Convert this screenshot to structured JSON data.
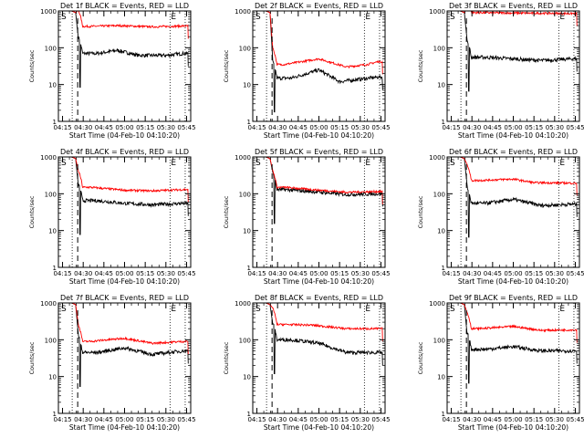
{
  "chart_data": {
    "type": "line",
    "x_axis": {
      "label": "Start Time (04-Feb-10 04:10:20)",
      "tick_labels": [
        "04:15",
        "04:30",
        "04:45",
        "05:00",
        "05:15",
        "05:30",
        "05:45"
      ],
      "tick_minutes": [
        15,
        30,
        45,
        60,
        75,
        90,
        105
      ],
      "xlim_minutes": [
        12,
        108
      ]
    },
    "y_axis": {
      "label": "Counts/sec",
      "scale": "log",
      "ylim": [
        1,
        1000
      ],
      "tick_labels": [
        "1",
        "10",
        "100",
        "1000"
      ]
    },
    "markers": {
      "start_label": "S",
      "end_label": "E",
      "dashed_line_minute": 26,
      "dotted_line_minutes": [
        22,
        93,
        104
      ]
    },
    "colors": {
      "events": "#000000",
      "lld": "#ff0000"
    },
    "panels": [
      {
        "title": "Det 1f BLACK = Events, RED = LLD",
        "series": [
          {
            "name": "BLACK = Events",
            "color": "#000000",
            "plateau": 70,
            "features": [
              [
                40,
                70
              ],
              [
                55,
                85
              ],
              [
                70,
                62
              ],
              [
                90,
                62
              ],
              [
                103,
                70
              ]
            ]
          },
          {
            "name": "RED = LLD",
            "color": "#ff0000",
            "plateau": 380,
            "features": [
              [
                35,
                380
              ],
              [
                55,
                400
              ],
              [
                80,
                370
              ],
              [
                103,
                390
              ]
            ]
          }
        ]
      },
      {
        "title": "Det 2f BLACK = Events, RED = LLD",
        "series": [
          {
            "name": "BLACK = Events",
            "color": "#000000",
            "plateau": 15,
            "features": [
              [
                40,
                15
              ],
              [
                60,
                25
              ],
              [
                75,
                12
              ],
              [
                90,
                14
              ],
              [
                103,
                16
              ]
            ]
          },
          {
            "name": "RED = LLD",
            "color": "#ff0000",
            "plateau": 40,
            "features": [
              [
                35,
                35
              ],
              [
                60,
                50
              ],
              [
                80,
                30
              ],
              [
                95,
                35
              ],
              [
                103,
                42
              ]
            ]
          }
        ]
      },
      {
        "title": "Det 3f BLACK = Events, RED = LLD",
        "series": [
          {
            "name": "BLACK = Events",
            "color": "#000000",
            "plateau": 55,
            "features": [
              [
                40,
                55
              ],
              [
                60,
                50
              ],
              [
                80,
                45
              ],
              [
                103,
                50
              ]
            ]
          },
          {
            "name": "RED = LLD",
            "color": "#ff0000",
            "plateau": 900,
            "features": [
              [
                35,
                900
              ],
              [
                70,
                870
              ],
              [
                103,
                850
              ]
            ]
          }
        ]
      },
      {
        "title": "Det 4f BLACK = Events, RED = LLD",
        "series": [
          {
            "name": "BLACK = Events",
            "color": "#000000",
            "plateau": 60,
            "features": [
              [
                40,
                65
              ],
              [
                60,
                55
              ],
              [
                80,
                50
              ],
              [
                103,
                55
              ]
            ]
          },
          {
            "name": "RED = LLD",
            "color": "#ff0000",
            "plateau": 140,
            "features": [
              [
                35,
                150
              ],
              [
                60,
                125
              ],
              [
                80,
                120
              ],
              [
                103,
                130
              ]
            ]
          }
        ]
      },
      {
        "title": "Det 5f BLACK = Events, RED = LLD",
        "series": [
          {
            "name": "BLACK = Events",
            "color": "#000000",
            "plateau": 120,
            "features": [
              [
                35,
                130
              ],
              [
                55,
                115
              ],
              [
                80,
                95
              ],
              [
                103,
                100
              ]
            ]
          },
          {
            "name": "RED = LLD",
            "color": "#ff0000",
            "plateau": 140,
            "features": [
              [
                35,
                150
              ],
              [
                55,
                130
              ],
              [
                80,
                110
              ],
              [
                103,
                115
              ]
            ]
          }
        ]
      },
      {
        "title": "Det 6f BLACK = Events, RED = LLD",
        "series": [
          {
            "name": "BLACK = Events",
            "color": "#000000",
            "plateau": 55,
            "features": [
              [
                40,
                55
              ],
              [
                60,
                70
              ],
              [
                80,
                48
              ],
              [
                103,
                52
              ]
            ]
          },
          {
            "name": "RED = LLD",
            "color": "#ff0000",
            "plateau": 220,
            "features": [
              [
                35,
                230
              ],
              [
                60,
                250
              ],
              [
                75,
                200
              ],
              [
                103,
                195
              ]
            ]
          }
        ]
      },
      {
        "title": "Det 7f BLACK = Events, RED = LLD",
        "series": [
          {
            "name": "BLACK = Events",
            "color": "#000000",
            "plateau": 45,
            "features": [
              [
                40,
                45
              ],
              [
                60,
                60
              ],
              [
                80,
                40
              ],
              [
                103,
                50
              ]
            ]
          },
          {
            "name": "RED = LLD",
            "color": "#ff0000",
            "plateau": 85,
            "features": [
              [
                35,
                90
              ],
              [
                60,
                110
              ],
              [
                80,
                80
              ],
              [
                103,
                90
              ]
            ]
          }
        ]
      },
      {
        "title": "Det 8f BLACK = Events, RED = LLD",
        "series": [
          {
            "name": "BLACK = Events",
            "color": "#000000",
            "plateau": 60,
            "features": [
              [
                40,
                100
              ],
              [
                60,
                80
              ],
              [
                80,
                45
              ],
              [
                103,
                45
              ]
            ]
          },
          {
            "name": "RED = LLD",
            "color": "#ff0000",
            "plateau": 220,
            "features": [
              [
                35,
                260
              ],
              [
                55,
                250
              ],
              [
                80,
                200
              ],
              [
                103,
                200
              ]
            ]
          }
        ]
      },
      {
        "title": "Det 9f BLACK = Events, RED = LLD",
        "series": [
          {
            "name": "BLACK = Events",
            "color": "#000000",
            "plateau": 55,
            "features": [
              [
                40,
                55
              ],
              [
                60,
                65
              ],
              [
                80,
                50
              ],
              [
                103,
                50
              ]
            ]
          },
          {
            "name": "RED = LLD",
            "color": "#ff0000",
            "plateau": 190,
            "features": [
              [
                35,
                200
              ],
              [
                60,
                230
              ],
              [
                80,
                180
              ],
              [
                103,
                185
              ]
            ]
          }
        ]
      }
    ]
  }
}
